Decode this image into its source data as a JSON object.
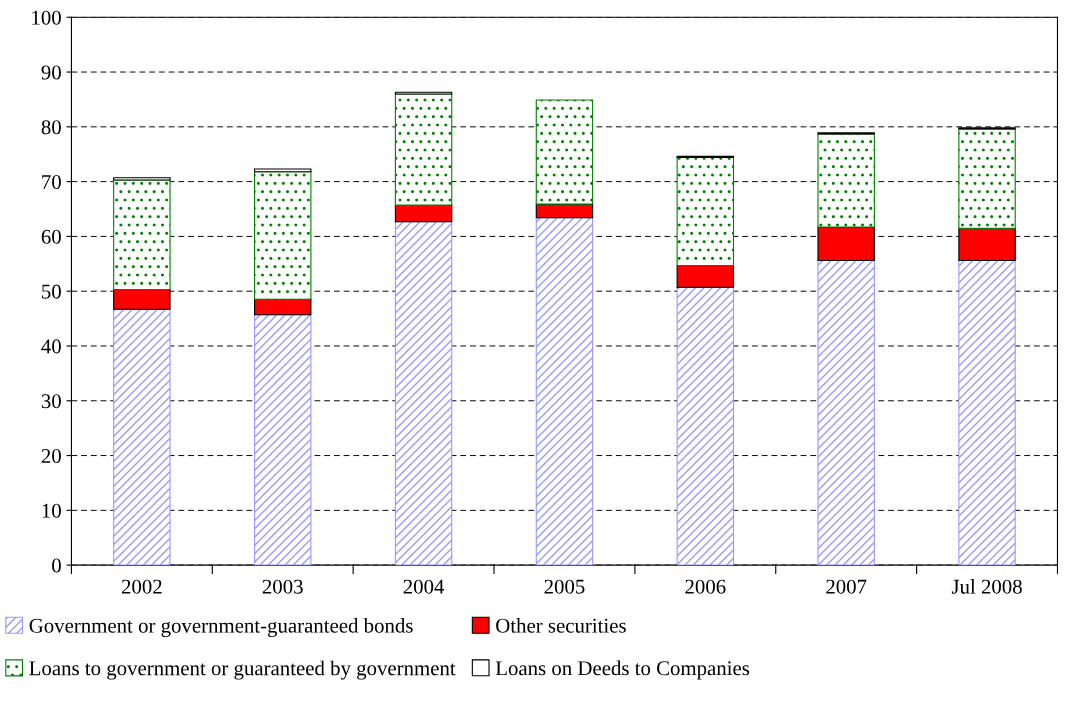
{
  "chart_data": {
    "type": "bar",
    "stacked": true,
    "categories": [
      "2002",
      "2003",
      "2004",
      "2005",
      "2006",
      "2007",
      "Jul 2008"
    ],
    "series": [
      {
        "name": "Government or government-guaranteed bonds",
        "color": "#9999ff",
        "values": [
          46.7,
          45.7,
          62.7,
          63.4,
          50.7,
          55.6,
          55.6
        ]
      },
      {
        "name": "Other securities",
        "color": "#ff0000",
        "values": [
          3.6,
          2.8,
          3.0,
          2.5,
          4.0,
          6.1,
          5.9
        ]
      },
      {
        "name": "Loans to government or guaranteed by government",
        "color": "#008000",
        "values": [
          20.0,
          23.3,
          20.3,
          19.0,
          19.7,
          17.0,
          18.1
        ]
      },
      {
        "name": "Loans on Deeds to Companies",
        "color": "#ffffff",
        "values": [
          0.4,
          0.5,
          0.3,
          null,
          0.2,
          0.2,
          0.2
        ]
      }
    ],
    "ylim": [
      0,
      100
    ],
    "yticks": [
      0,
      10,
      20,
      30,
      40,
      50,
      60,
      70,
      80,
      90,
      100
    ],
    "grid": "y",
    "legend": "bottom"
  }
}
